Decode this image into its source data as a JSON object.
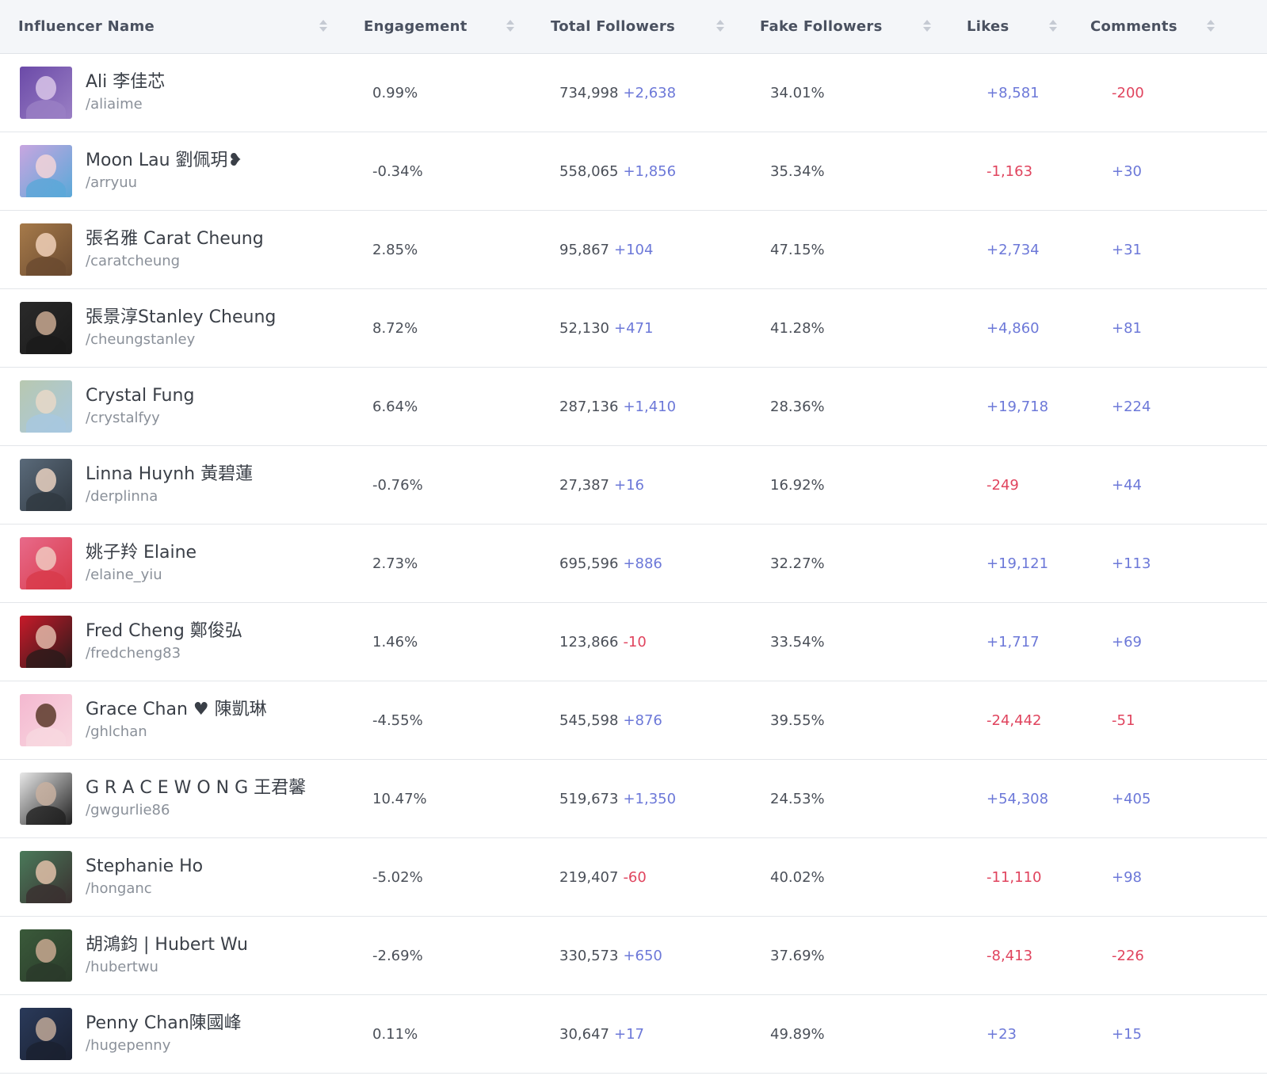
{
  "colors": {
    "positive": "#6c78d8",
    "negative": "#e0445e",
    "header_bg": "#f4f6f9"
  },
  "columns": [
    {
      "label": "Influencer Name",
      "sortable": true
    },
    {
      "label": "Engagement",
      "sortable": true
    },
    {
      "label": "Total Followers",
      "sortable": true
    },
    {
      "label": "Fake Followers",
      "sortable": true
    },
    {
      "label": "Likes",
      "sortable": true
    },
    {
      "label": "Comments",
      "sortable": true
    }
  ],
  "rows": [
    {
      "name": "Ali 李佳芯",
      "handle": "/aliaime",
      "engagement": "0.99%",
      "followers": "734,998",
      "followers_delta": "+2,638",
      "followers_delta_sign": "pos",
      "fake": "34.01%",
      "likes": "+8,581",
      "likes_sign": "pos",
      "comments": "-200",
      "comments_sign": "neg",
      "avatar_colors": [
        "#6b4aa8",
        "#d8c4e8",
        "#9a7fc4"
      ]
    },
    {
      "name": "Moon Lau 劉佩玥❥",
      "handle": "/arryuu",
      "engagement": "-0.34%",
      "followers": "558,065",
      "followers_delta": "+1,856",
      "followers_delta_sign": "pos",
      "fake": "35.34%",
      "likes": "-1,163",
      "likes_sign": "neg",
      "comments": "+30",
      "comments_sign": "pos",
      "avatar_colors": [
        "#c8a6e0",
        "#f2d4d8",
        "#5aa8d8"
      ]
    },
    {
      "name": "張名雅 Carat Cheung",
      "handle": "/caratcheung",
      "engagement": "2.85%",
      "followers": "95,867",
      "followers_delta": "+104",
      "followers_delta_sign": "pos",
      "fake": "47.15%",
      "likes": "+2,734",
      "likes_sign": "pos",
      "comments": "+31",
      "comments_sign": "pos",
      "avatar_colors": [
        "#a67a4a",
        "#f0d0b8",
        "#6a4a30"
      ]
    },
    {
      "name": "張景淳Stanley Cheung",
      "handle": "/cheungstanley",
      "engagement": "8.72%",
      "followers": "52,130",
      "followers_delta": "+471",
      "followers_delta_sign": "pos",
      "fake": "41.28%",
      "likes": "+4,860",
      "likes_sign": "pos",
      "comments": "+81",
      "comments_sign": "pos",
      "avatar_colors": [
        "#2a2a2a",
        "#c8a890",
        "#1a1a1a"
      ]
    },
    {
      "name": "Crystal Fung",
      "handle": "/crystalfyy",
      "engagement": "6.64%",
      "followers": "287,136",
      "followers_delta": "+1,410",
      "followers_delta_sign": "pos",
      "fake": "28.36%",
      "likes": "+19,718",
      "likes_sign": "pos",
      "comments": "+224",
      "comments_sign": "pos",
      "avatar_colors": [
        "#b8c8b0",
        "#e8d8c8",
        "#a8c8e0"
      ]
    },
    {
      "name": "Linna Huynh 黃碧蓮",
      "handle": "/derplinna",
      "engagement": "-0.76%",
      "followers": "27,387",
      "followers_delta": "+16",
      "followers_delta_sign": "pos",
      "fake": "16.92%",
      "likes": "-249",
      "likes_sign": "neg",
      "comments": "+44",
      "comments_sign": "pos",
      "avatar_colors": [
        "#5a6a7a",
        "#e8d0c0",
        "#303840"
      ]
    },
    {
      "name": "姚子羚 Elaine",
      "handle": "/elaine_yiu",
      "engagement": "2.73%",
      "followers": "695,596",
      "followers_delta": "+886",
      "followers_delta_sign": "pos",
      "fake": "32.27%",
      "likes": "+19,121",
      "likes_sign": "pos",
      "comments": "+113",
      "comments_sign": "pos",
      "avatar_colors": [
        "#e86a8a",
        "#f0c8c0",
        "#d83a4a"
      ]
    },
    {
      "name": "Fred Cheng 鄭俊弘",
      "handle": "/fredcheng83",
      "engagement": "1.46%",
      "followers": "123,866",
      "followers_delta": "-10",
      "followers_delta_sign": "neg",
      "fake": "33.54%",
      "likes": "+1,717",
      "likes_sign": "pos",
      "comments": "+69",
      "comments_sign": "pos",
      "avatar_colors": [
        "#c81a2a",
        "#e0b8a8",
        "#2a1a1a"
      ]
    },
    {
      "name": "Grace Chan ♥ 陳凱琳",
      "handle": "/ghlchan",
      "engagement": "-4.55%",
      "followers": "545,598",
      "followers_delta": "+876",
      "followers_delta_sign": "pos",
      "fake": "39.55%",
      "likes": "-24,442",
      "likes_sign": "neg",
      "comments": "-51",
      "comments_sign": "neg",
      "avatar_colors": [
        "#f4b8d0",
        "#5a3a2a",
        "#f8d8e0"
      ]
    },
    {
      "name": "G R A C E W O N G 王君馨",
      "handle": "/gwgurlie86",
      "engagement": "10.47%",
      "followers": "519,673",
      "followers_delta": "+1,350",
      "followers_delta_sign": "pos",
      "fake": "24.53%",
      "likes": "+54,308",
      "likes_sign": "pos",
      "comments": "+405",
      "comments_sign": "pos",
      "avatar_colors": [
        "#e8e8e8",
        "#c8b0a0",
        "#202020"
      ]
    },
    {
      "name": "Stephanie Ho",
      "handle": "/honganc",
      "engagement": "-5.02%",
      "followers": "219,407",
      "followers_delta": "-60",
      "followers_delta_sign": "neg",
      "fake": "40.02%",
      "likes": "-11,110",
      "likes_sign": "neg",
      "comments": "+98",
      "comments_sign": "pos",
      "avatar_colors": [
        "#4a7a5a",
        "#e0c0a8",
        "#3a3030"
      ]
    },
    {
      "name": "胡鴻鈞 | Hubert Wu",
      "handle": "/hubertwu",
      "engagement": "-2.69%",
      "followers": "330,573",
      "followers_delta": "+650",
      "followers_delta_sign": "pos",
      "fake": "37.69%",
      "likes": "-8,413",
      "likes_sign": "neg",
      "comments": "-226",
      "comments_sign": "neg",
      "avatar_colors": [
        "#3a5a3a",
        "#c8a890",
        "#2a3a2a"
      ]
    },
    {
      "name": "Penny Chan陳國峰",
      "handle": "/hugepenny",
      "engagement": "0.11%",
      "followers": "30,647",
      "followers_delta": "+17",
      "followers_delta_sign": "pos",
      "fake": "49.89%",
      "likes": "+23",
      "likes_sign": "pos",
      "comments": "+15",
      "comments_sign": "pos",
      "avatar_colors": [
        "#2a3a5a",
        "#c0a898",
        "#1a2030"
      ]
    }
  ]
}
